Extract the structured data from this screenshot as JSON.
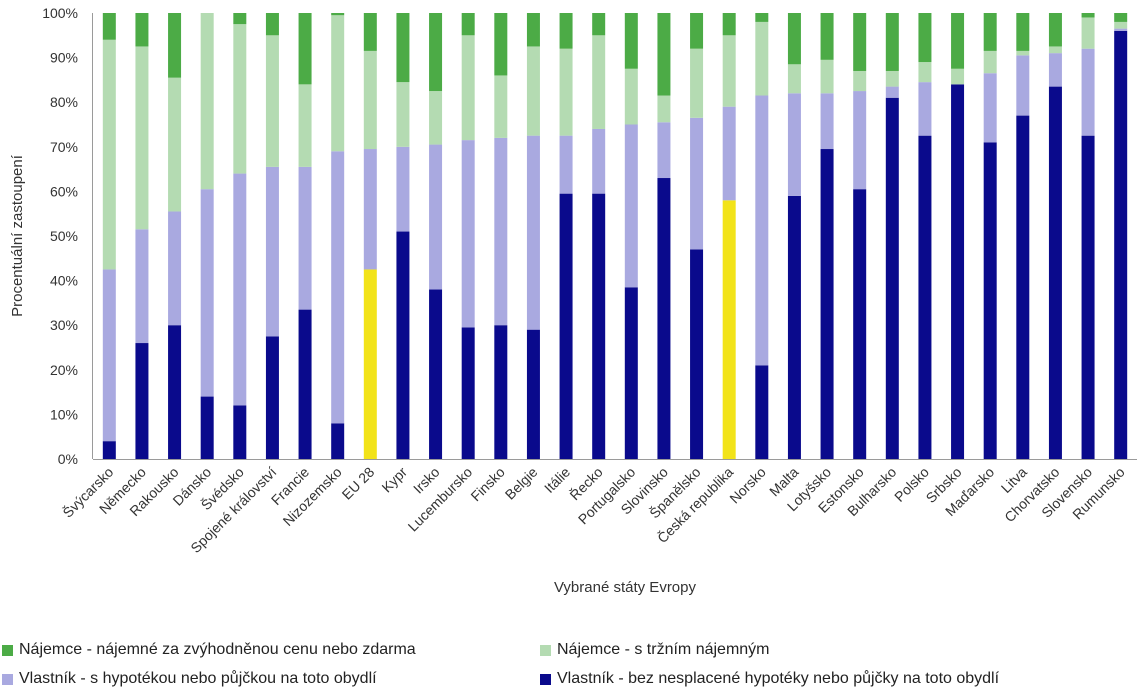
{
  "chart_data": {
    "type": "bar",
    "stacked": true,
    "xlabel": "Vybrané státy Evropy",
    "ylabel": "Procentuální zastoupení",
    "ylim": [
      0,
      100
    ],
    "yticks": [
      "0%",
      "10%",
      "20%",
      "30%",
      "40%",
      "50%",
      "60%",
      "70%",
      "80%",
      "90%",
      "100%"
    ],
    "grid": false,
    "legend_position": "bottom",
    "categories": [
      "Švýcarsko",
      "Německo",
      "Rakousko",
      "Dánsko",
      "Švédsko",
      "Spojené království",
      "Francie",
      "Nizozemsko",
      "EU 28",
      "Kypr",
      "Irsko",
      "Lucembursko",
      "Finsko",
      "Belgie",
      "Itálie",
      "Řecko",
      "Portugalsko",
      "Slovinsko",
      "Španělsko",
      "Česká republika",
      "Norsko",
      "Malta",
      "Lotyšsko",
      "Estonsko",
      "Bulharsko",
      "Polsko",
      "Srbsko",
      "Maďarsko",
      "Litva",
      "Chorvatsko",
      "Slovensko",
      "Rumunsko"
    ],
    "highlighted_categories": [
      "EU 28",
      "Česká republika"
    ],
    "highlight_color": "#f2e319",
    "series": [
      {
        "name": "Vlastník - bez nesplacené hypotéky nebo půjčky na toto obydlí",
        "color": "#0a0a8c",
        "values": [
          4,
          26,
          30,
          14,
          12,
          27.5,
          33.5,
          8,
          42.5,
          51,
          38,
          29.5,
          30,
          29,
          59.5,
          59.5,
          38.5,
          63,
          47,
          58,
          21,
          59,
          69.5,
          60.5,
          81,
          72.5,
          84,
          71,
          77,
          83.5,
          72.5,
          96
        ]
      },
      {
        "name": "Vlastník - s hypotékou nebo půjčkou na toto obydlí",
        "color": "#a9a9e0",
        "values": [
          38.5,
          25.5,
          25.5,
          46.5,
          52,
          38,
          32,
          61,
          27,
          19,
          32.5,
          42,
          42,
          43.5,
          13,
          14.5,
          36.5,
          12.5,
          29.5,
          21,
          60.5,
          23,
          12.5,
          22,
          2.5,
          12,
          0,
          15.5,
          13.5,
          7.5,
          19.5,
          0.5
        ]
      },
      {
        "name": "Nájemce - s tržním nájemným",
        "color": "#b4dbb2",
        "values": [
          51.5,
          41,
          30,
          39.5,
          33.5,
          29.5,
          18.5,
          30.5,
          22,
          14.5,
          12,
          23.5,
          14,
          20,
          19.5,
          21,
          12.5,
          6,
          15.5,
          16,
          16.5,
          6.5,
          7.5,
          4.5,
          3.5,
          4.5,
          3.5,
          5,
          1,
          1.5,
          7,
          1.5
        ]
      },
      {
        "name": "Nájemce - nájemné za zvýhodněnou cenu nebo zdarma",
        "color": "#4cab46",
        "values": [
          6,
          7.5,
          14.5,
          0,
          2.5,
          5,
          16,
          0.5,
          8.5,
          15.5,
          17.5,
          5,
          14,
          7.5,
          8,
          5,
          12.5,
          18.5,
          8,
          5,
          2,
          11.5,
          10.5,
          13,
          13,
          11,
          12.5,
          8.5,
          8.5,
          7.5,
          1,
          2
        ]
      }
    ]
  },
  "legend": {
    "items": [
      {
        "label": "Nájemce - nájemné za zvýhodněnou cenu nebo zdarma",
        "color": "#4cab46"
      },
      {
        "label": "Nájemce - s tržním nájemným",
        "color": "#b4dbb2"
      },
      {
        "label": "Vlastník - s hypotékou nebo půjčkou na toto obydlí",
        "color": "#a9a9e0"
      },
      {
        "label": "Vlastník - bez nesplacené hypotéky nebo půjčky na toto obydlí",
        "color": "#0a0a8c"
      }
    ]
  }
}
